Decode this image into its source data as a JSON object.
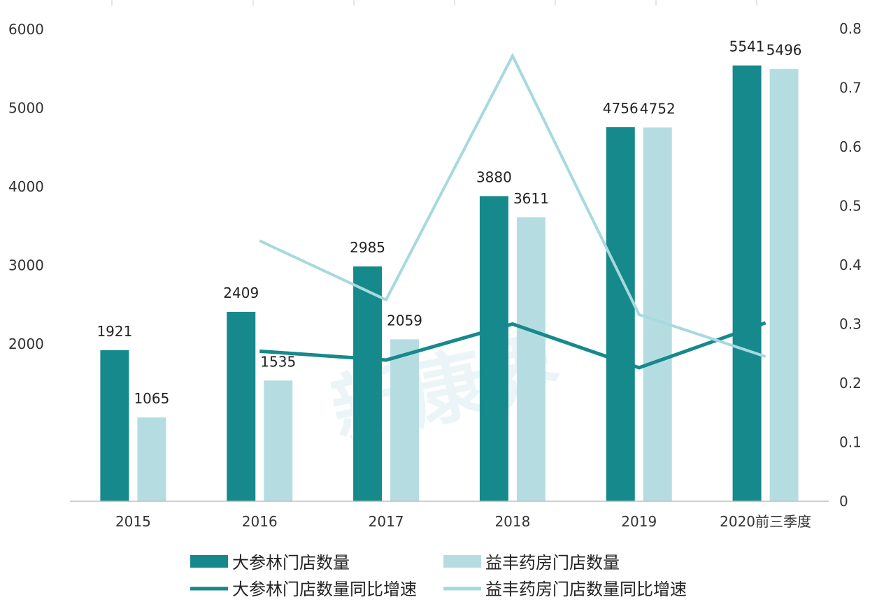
{
  "chart_data": {
    "type": "bar",
    "categories": [
      "2015",
      "2016",
      "2017",
      "2018",
      "2019",
      "2020前三季度"
    ],
    "series": [
      {
        "name": "大参林门店数量",
        "kind": "bar",
        "axis": "left",
        "color": "#16898c",
        "values": [
          1921,
          2409,
          2985,
          3880,
          4756,
          5541
        ]
      },
      {
        "name": "益丰药房门店数量",
        "kind": "bar",
        "axis": "left",
        "color": "#b5dde1",
        "values": [
          1065,
          1535,
          2059,
          3611,
          4752,
          5496
        ]
      },
      {
        "name": "大参林门店数量同比增速",
        "kind": "line",
        "axis": "right",
        "color": "#16898c",
        "values": [
          null,
          0.254,
          0.239,
          0.3,
          0.226,
          0.302
        ]
      },
      {
        "name": "益丰药房门店数量同比增速",
        "kind": "line",
        "axis": "right",
        "color": "#a7d9de",
        "values": [
          null,
          0.441,
          0.341,
          0.754,
          0.316,
          0.245
        ]
      }
    ],
    "data_labels": {
      "大参林门店数量": [
        "1921",
        "2409",
        "2985",
        "3880",
        "4756",
        "5541"
      ],
      "益丰药房门店数量": [
        "1065",
        "1535",
        "2059",
        "3611",
        "4752",
        "5496"
      ]
    },
    "y_left": {
      "ticks": [
        "2000",
        "3000",
        "4000",
        "5000",
        "6000"
      ],
      "lim": [
        0,
        6000
      ]
    },
    "y_right": {
      "ticks": [
        "0",
        "0.1",
        "0.2",
        "0.3",
        "0.4",
        "0.5",
        "0.6",
        "0.7",
        "0.8"
      ],
      "lim": [
        0,
        0.8
      ]
    },
    "title": "",
    "xlabel": "",
    "ylabel": "",
    "legend_position": "bottom",
    "grid": false
  },
  "watermark": "新康界"
}
